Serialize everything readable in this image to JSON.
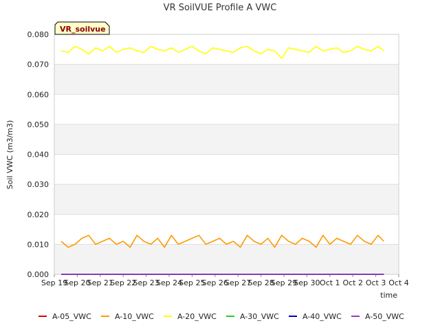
{
  "chart_data": {
    "type": "line",
    "title": "VR SoilVUE Profile A VWC",
    "xlabel": "time",
    "ylabel": "Soil VWC (m3/m3)",
    "station_label": "VR_soilvue",
    "ylim": [
      0.0,
      0.08
    ],
    "y_ticks": [
      "0.000",
      "0.010",
      "0.020",
      "0.030",
      "0.040",
      "0.050",
      "0.060",
      "0.070",
      "0.080"
    ],
    "x_day_range": [
      0,
      15
    ],
    "x_ticks": [
      {
        "day": 0,
        "label": "Sep 19"
      },
      {
        "day": 1,
        "label": "Sep 20"
      },
      {
        "day": 2,
        "label": "Sep 21"
      },
      {
        "day": 3,
        "label": "Sep 22"
      },
      {
        "day": 4,
        "label": "Sep 23"
      },
      {
        "day": 5,
        "label": "Sep 24"
      },
      {
        "day": 6,
        "label": "Sep 25"
      },
      {
        "day": 7,
        "label": "Sep 26"
      },
      {
        "day": 8,
        "label": "Sep 27"
      },
      {
        "day": 9,
        "label": "Sep 28"
      },
      {
        "day": 10,
        "label": "Sep 29"
      },
      {
        "day": 11,
        "label": "Sep 30"
      },
      {
        "day": 12,
        "label": "Oct 1"
      },
      {
        "day": 13,
        "label": "Oct 2"
      },
      {
        "day": 14,
        "label": "Oct 3"
      },
      {
        "day": 15,
        "label": "Oct 4"
      }
    ],
    "grid": true,
    "legend_position": "bottom",
    "series": [
      {
        "name": "A-05_VWC",
        "color": "#dd0000",
        "x": [
          0.3,
          14.35
        ],
        "values": [
          0.0,
          0.0
        ]
      },
      {
        "name": "A-10_VWC",
        "color": "#ff9900",
        "x": [
          0.3,
          0.6,
          0.9,
          1.2,
          1.5,
          1.8,
          2.1,
          2.4,
          2.7,
          3.0,
          3.3,
          3.6,
          3.9,
          4.2,
          4.5,
          4.8,
          5.1,
          5.4,
          5.7,
          6.0,
          6.3,
          6.6,
          6.9,
          7.2,
          7.5,
          7.8,
          8.1,
          8.4,
          8.7,
          9.0,
          9.3,
          9.6,
          9.9,
          10.2,
          10.5,
          10.8,
          11.1,
          11.4,
          11.7,
          12.0,
          12.3,
          12.6,
          12.9,
          13.2,
          13.5,
          13.8,
          14.1,
          14.35
        ],
        "values": [
          0.011,
          0.009,
          0.01,
          0.012,
          0.013,
          0.01,
          0.011,
          0.012,
          0.01,
          0.011,
          0.009,
          0.013,
          0.011,
          0.01,
          0.012,
          0.009,
          0.013,
          0.01,
          0.011,
          0.012,
          0.013,
          0.01,
          0.011,
          0.012,
          0.01,
          0.011,
          0.009,
          0.013,
          0.011,
          0.01,
          0.012,
          0.009,
          0.013,
          0.011,
          0.01,
          0.012,
          0.011,
          0.009,
          0.013,
          0.01,
          0.012,
          0.011,
          0.01,
          0.013,
          0.011,
          0.01,
          0.013,
          0.011
        ]
      },
      {
        "name": "A-20_VWC",
        "color": "#ffff00",
        "x": [
          0.3,
          0.6,
          0.9,
          1.2,
          1.5,
          1.8,
          2.1,
          2.4,
          2.7,
          3.0,
          3.3,
          3.6,
          3.9,
          4.2,
          4.5,
          4.8,
          5.1,
          5.4,
          5.7,
          6.0,
          6.3,
          6.6,
          6.9,
          7.2,
          7.5,
          7.8,
          8.1,
          8.4,
          8.7,
          9.0,
          9.3,
          9.6,
          9.9,
          10.2,
          10.5,
          10.8,
          11.1,
          11.4,
          11.7,
          12.0,
          12.3,
          12.6,
          12.9,
          13.2,
          13.5,
          13.8,
          14.1,
          14.35
        ],
        "values": [
          0.0745,
          0.074,
          0.076,
          0.075,
          0.0735,
          0.0755,
          0.0745,
          0.076,
          0.074,
          0.075,
          0.0755,
          0.0745,
          0.074,
          0.076,
          0.075,
          0.0745,
          0.0755,
          0.074,
          0.075,
          0.076,
          0.0745,
          0.0735,
          0.0755,
          0.075,
          0.0745,
          0.074,
          0.0755,
          0.076,
          0.0745,
          0.0735,
          0.075,
          0.0745,
          0.072,
          0.0755,
          0.075,
          0.0745,
          0.074,
          0.076,
          0.0745,
          0.075,
          0.0755,
          0.074,
          0.0745,
          0.076,
          0.075,
          0.0745,
          0.076,
          0.0745
        ]
      },
      {
        "name": "A-30_VWC",
        "color": "#22cc22",
        "x": [
          0.3,
          14.35
        ],
        "values": [
          0.0,
          0.0
        ]
      },
      {
        "name": "A-40_VWC",
        "color": "#0000bb",
        "x": [
          0.3,
          14.35
        ],
        "values": [
          0.0,
          0.0
        ]
      },
      {
        "name": "A-50_VWC",
        "color": "#9933cc",
        "x": [
          0.3,
          14.35
        ],
        "values": [
          0.0,
          0.0
        ]
      }
    ]
  }
}
